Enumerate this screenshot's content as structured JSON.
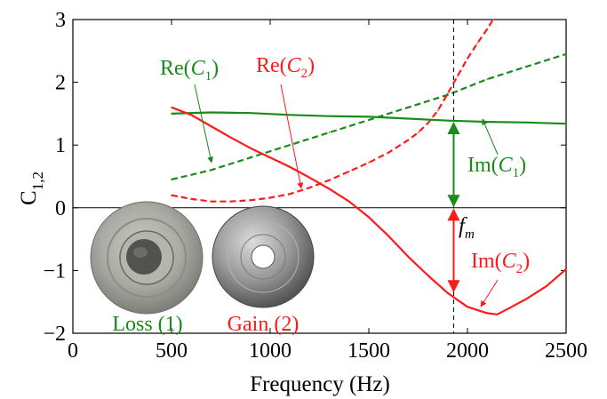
{
  "chart_data": {
    "type": "line",
    "xlabel": "Frequency (Hz)",
    "ylabel_main": "C",
    "ylabel_sub": "1,2",
    "xlim": [
      0,
      2500
    ],
    "ylim": [
      -2,
      3
    ],
    "xticks": [
      0,
      500,
      1000,
      1500,
      2000,
      2500
    ],
    "yticks": [
      3,
      2,
      1,
      0,
      -1,
      -2
    ],
    "grid": false,
    "colors": {
      "green": "#1a8a1a",
      "red": "#ff1a1a",
      "black": "#000000"
    },
    "series": [
      {
        "name": "Re(C1)",
        "color": "#1a8a1a",
        "dash": "dashed",
        "x": [
          500,
          700,
          900,
          1100,
          1300,
          1500,
          1700,
          1900,
          2100,
          2300,
          2500
        ],
        "y": [
          0.45,
          0.6,
          0.8,
          1.0,
          1.2,
          1.4,
          1.6,
          1.8,
          2.05,
          2.25,
          2.45
        ]
      },
      {
        "name": "Re(C2)",
        "color": "#ff1a1a",
        "dash": "dashed",
        "x": [
          500,
          600,
          700,
          800,
          900,
          1000,
          1100,
          1200,
          1300,
          1400,
          1500,
          1600,
          1700,
          1750,
          1800,
          1850,
          1900,
          1950,
          2000,
          2050,
          2100,
          2130
        ],
        "y": [
          0.2,
          0.14,
          0.1,
          0.1,
          0.12,
          0.16,
          0.22,
          0.32,
          0.44,
          0.58,
          0.72,
          0.88,
          1.08,
          1.2,
          1.35,
          1.55,
          1.82,
          2.1,
          2.38,
          2.62,
          2.85,
          3.0
        ]
      },
      {
        "name": "Im(C1)",
        "color": "#1a8a1a",
        "dash": "solid",
        "x": [
          500,
          700,
          900,
          1100,
          1300,
          1500,
          1700,
          1900,
          2100,
          2300,
          2500
        ],
        "y": [
          1.5,
          1.52,
          1.51,
          1.48,
          1.46,
          1.45,
          1.42,
          1.39,
          1.37,
          1.36,
          1.34
        ]
      },
      {
        "name": "Im(C2)",
        "color": "#ff1a1a",
        "dash": "solid",
        "x": [
          500,
          600,
          700,
          800,
          900,
          1000,
          1100,
          1200,
          1300,
          1400,
          1500,
          1600,
          1700,
          1800,
          1900,
          2000,
          2100,
          2150,
          2200,
          2300,
          2400,
          2500
        ],
        "y": [
          1.6,
          1.48,
          1.3,
          1.12,
          0.95,
          0.8,
          0.65,
          0.48,
          0.3,
          0.1,
          -0.15,
          -0.45,
          -0.78,
          -1.08,
          -1.36,
          -1.58,
          -1.68,
          -1.7,
          -1.62,
          -1.45,
          -1.25,
          -0.98
        ]
      }
    ],
    "annotations": {
      "re_c1": {
        "pre": "Re(",
        "var": "C",
        "sub": "1",
        "post": ")",
        "color": "#1a8a1a"
      },
      "re_c2": {
        "pre": "Re(",
        "var": "C",
        "sub": "2",
        "post": ")",
        "color": "#ff1a1a"
      },
      "im_c1": {
        "pre": "Im(",
        "var": "C",
        "sub": "1",
        "post": ")",
        "color": "#1a8a1a"
      },
      "im_c2": {
        "pre": "Im(",
        "var": "C",
        "sub": "2",
        "post": ")",
        "color": "#ff1a1a"
      },
      "fm": {
        "var": "f",
        "sub": "m"
      },
      "fm_x": 1930
    },
    "insets": {
      "loss_label": "Loss (1)",
      "gain_label": "Gain (2)"
    }
  }
}
